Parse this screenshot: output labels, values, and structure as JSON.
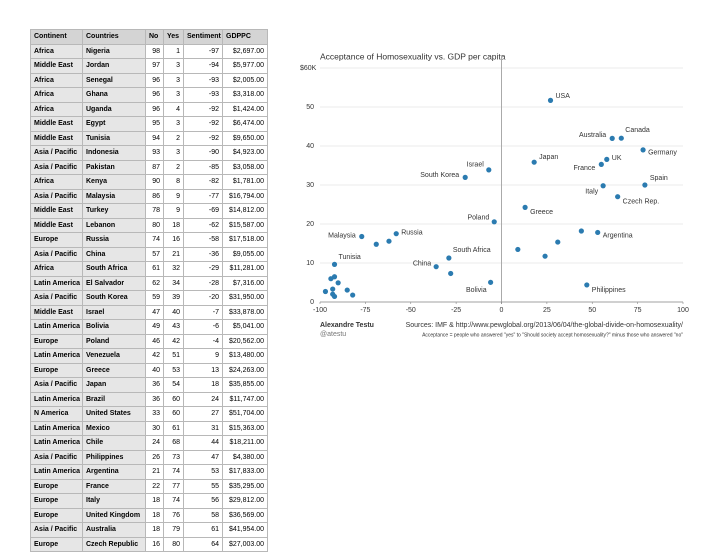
{
  "table": {
    "columns": [
      "Continent",
      "Countries",
      "No",
      "Yes",
      "Sentiment",
      "GDPPC"
    ],
    "rows": [
      [
        "Africa",
        "Nigeria",
        "98",
        "1",
        "-97",
        "$2,697.00"
      ],
      [
        "Middle East",
        "Jordan",
        "97",
        "3",
        "-94",
        "$5,977.00"
      ],
      [
        "Africa",
        "Senegal",
        "96",
        "3",
        "-93",
        "$2,005.00"
      ],
      [
        "Africa",
        "Ghana",
        "96",
        "3",
        "-93",
        "$3,318.00"
      ],
      [
        "Africa",
        "Uganda",
        "96",
        "4",
        "-92",
        "$1,424.00"
      ],
      [
        "Middle East",
        "Egypt",
        "95",
        "3",
        "-92",
        "$6,474.00"
      ],
      [
        "Middle East",
        "Tunisia",
        "94",
        "2",
        "-92",
        "$9,650.00"
      ],
      [
        "Asia / Pacific",
        "Indonesia",
        "93",
        "3",
        "-90",
        "$4,923.00"
      ],
      [
        "Asia / Pacific",
        "Pakistan",
        "87",
        "2",
        "-85",
        "$3,058.00"
      ],
      [
        "Africa",
        "Kenya",
        "90",
        "8",
        "-82",
        "$1,781.00"
      ],
      [
        "Asia / Pacific",
        "Malaysia",
        "86",
        "9",
        "-77",
        "$16,794.00"
      ],
      [
        "Middle East",
        "Turkey",
        "78",
        "9",
        "-69",
        "$14,812.00"
      ],
      [
        "Middle East",
        "Lebanon",
        "80",
        "18",
        "-62",
        "$15,587.00"
      ],
      [
        "Europe",
        "Russia",
        "74",
        "16",
        "-58",
        "$17,518.00"
      ],
      [
        "Asia / Pacific",
        "China",
        "57",
        "21",
        "-36",
        "$9,055.00"
      ],
      [
        "Africa",
        "South Africa",
        "61",
        "32",
        "-29",
        "$11,281.00"
      ],
      [
        "Latin America",
        "El Salvador",
        "62",
        "34",
        "-28",
        "$7,316.00"
      ],
      [
        "Asia / Pacific",
        "South Korea",
        "59",
        "39",
        "-20",
        "$31,950.00"
      ],
      [
        "Middle East",
        "Israel",
        "47",
        "40",
        "-7",
        "$33,878.00"
      ],
      [
        "Latin America",
        "Bolivia",
        "49",
        "43",
        "-6",
        "$5,041.00"
      ],
      [
        "Europe",
        "Poland",
        "46",
        "42",
        "-4",
        "$20,562.00"
      ],
      [
        "Latin America",
        "Venezuela",
        "42",
        "51",
        "9",
        "$13,480.00"
      ],
      [
        "Europe",
        "Greece",
        "40",
        "53",
        "13",
        "$24,263.00"
      ],
      [
        "Asia / Pacific",
        "Japan",
        "36",
        "54",
        "18",
        "$35,855.00"
      ],
      [
        "Latin America",
        "Brazil",
        "36",
        "60",
        "24",
        "$11,747.00"
      ],
      [
        "N America",
        "United States",
        "33",
        "60",
        "27",
        "$51,704.00"
      ],
      [
        "Latin America",
        "Mexico",
        "30",
        "61",
        "31",
        "$15,363.00"
      ],
      [
        "Latin America",
        "Chile",
        "24",
        "68",
        "44",
        "$18,211.00"
      ],
      [
        "Asia / Pacific",
        "Philippines",
        "26",
        "73",
        "47",
        "$4,380.00"
      ],
      [
        "Latin America",
        "Argentina",
        "21",
        "74",
        "53",
        "$17,833.00"
      ],
      [
        "Europe",
        "France",
        "22",
        "77",
        "55",
        "$35,295.00"
      ],
      [
        "Europe",
        "Italy",
        "18",
        "74",
        "56",
        "$29,812.00"
      ],
      [
        "Europe",
        "United Kingdom",
        "18",
        "76",
        "58",
        "$36,569.00"
      ],
      [
        "Asia / Pacific",
        "Australia",
        "18",
        "79",
        "61",
        "$41,954.00"
      ],
      [
        "Europe",
        "Czech Republic",
        "16",
        "80",
        "64",
        "$27,003.00"
      ]
    ]
  },
  "chart_data": {
    "type": "scatter",
    "title": "Acceptance of Homosexuality vs. GDP per capita",
    "color": "#2b7bb0",
    "x": [
      -97,
      -94,
      -93,
      -93,
      -92,
      -92,
      -92,
      -90,
      -85,
      -82,
      -77,
      -69,
      -62,
      -58,
      -36,
      -29,
      -28,
      -20,
      -7,
      -6,
      -4,
      9,
      13,
      18,
      24,
      27,
      31,
      44,
      47,
      53,
      55,
      56,
      58,
      61,
      64,
      66,
      78,
      79
    ],
    "y": [
      2.697,
      5.977,
      2.005,
      3.318,
      1.424,
      6.474,
      9.65,
      4.923,
      3.058,
      1.781,
      16.794,
      14.812,
      15.587,
      17.518,
      9.055,
      11.281,
      7.316,
      31.95,
      33.878,
      5.041,
      20.562,
      13.48,
      24.263,
      35.855,
      11.747,
      51.704,
      15.363,
      18.211,
      4.38,
      17.833,
      35.295,
      29.812,
      36.569,
      41.954,
      27.003,
      42,
      39,
      30
    ],
    "labels": [
      null,
      null,
      null,
      null,
      null,
      null,
      "Tunisia",
      null,
      null,
      null,
      "Malaysia",
      null,
      null,
      "Russia",
      "China",
      "South Africa",
      null,
      "South Korea",
      "Israel",
      "Bolivia",
      "Poland",
      null,
      "Greece",
      "Japan",
      null,
      "USA",
      null,
      null,
      "Philippines",
      "Argentina",
      "France",
      "Italy",
      "UK",
      "Australia",
      "Czech Rep.",
      "Canada",
      "Germany",
      "Spain"
    ],
    "xlim": [
      -100,
      100
    ],
    "xticks": [
      -100,
      -75,
      -50,
      -25,
      0,
      25,
      50,
      75,
      100
    ],
    "ylim": [
      0,
      60
    ],
    "yticks": [
      0,
      10,
      20,
      30,
      40,
      50,
      {
        "value": 60,
        "label": "$60K"
      }
    ],
    "grid": true,
    "author": "Alexandre Testu",
    "handle": "@atestu",
    "source": "Sources: IMF & http://www.pewglobal.org/2013/06/04/the-global-divide-on-homosexuality/",
    "note": "Acceptance = people who answered \"yes\" to \"Should society accept homosexuality?\" minus those who answered \"no\""
  }
}
